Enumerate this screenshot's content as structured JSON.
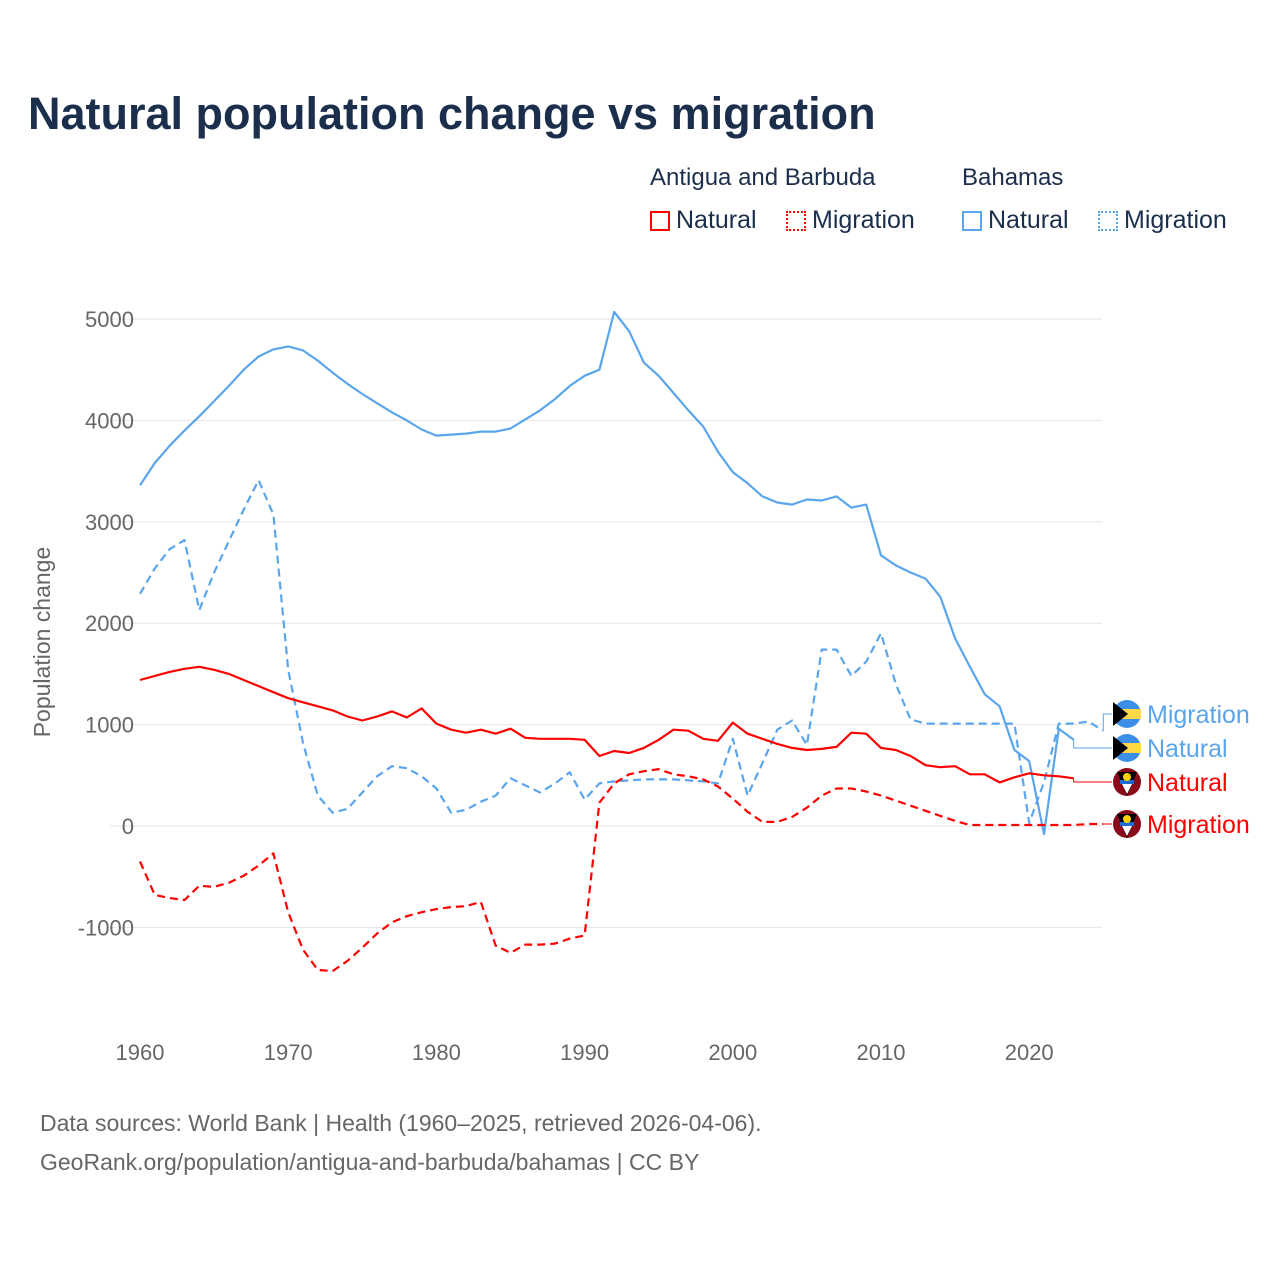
{
  "title": "Natural population change vs migration",
  "legend": {
    "groups": [
      {
        "name": "Antigua and Barbuda",
        "items": [
          "Natural",
          "Migration"
        ],
        "color": "#ff0000"
      },
      {
        "name": "Bahamas",
        "items": [
          "Natural",
          "Migration"
        ],
        "color": "#5aa5ec"
      }
    ]
  },
  "footer": {
    "line1": "Data sources: World Bank | Health (1960–2025, retrieved 2026-04-06).",
    "line2": "GeoRank.org/population/antigua-and-barbuda/bahamas | CC BY"
  },
  "chart_data": {
    "type": "line",
    "title": "Natural population change vs migration",
    "xlabel": "",
    "ylabel": "Population change",
    "xlim": [
      1960,
      2025
    ],
    "ylim": [
      -1800,
      5300
    ],
    "xticks": [
      1960,
      1970,
      1980,
      1990,
      2000,
      2010,
      2020
    ],
    "yticks": [
      -1000,
      0,
      1000,
      2000,
      3000,
      4000,
      5000
    ],
    "grid": true,
    "series": [
      {
        "name": "Bahamas Migration",
        "country": "Bahamas",
        "kind": "Migration",
        "color": "#5aa5ec",
        "dashed": true,
        "start": 1960,
        "values": [
          2290,
          2540,
          2730,
          2820,
          2130,
          2500,
          2810,
          3120,
          3410,
          3070,
          1540,
          820,
          300,
          130,
          170,
          330,
          490,
          590,
          570,
          490,
          370,
          130,
          160,
          240,
          300,
          470,
          400,
          330,
          420,
          530,
          260,
          420,
          440,
          450,
          460,
          460,
          460,
          450,
          440,
          420,
          860,
          300,
          620,
          950,
          1040,
          800,
          1740,
          1740,
          1480,
          1620,
          1900,
          1400,
          1050,
          1010,
          1010,
          1010,
          1010,
          1010,
          1010,
          1010,
          30,
          430,
          1010,
          1010,
          1030,
          940
        ]
      },
      {
        "name": "Bahamas Natural",
        "country": "Bahamas",
        "kind": "Natural",
        "color": "#5aa5ec",
        "dashed": false,
        "start": 1960,
        "values": [
          3360,
          3580,
          3750,
          3900,
          4040,
          4190,
          4340,
          4500,
          4630,
          4700,
          4730,
          4690,
          4590,
          4470,
          4360,
          4260,
          4170,
          4080,
          4000,
          3910,
          3850,
          3860,
          3870,
          3890,
          3890,
          3920,
          4010,
          4100,
          4210,
          4340,
          4440,
          4500,
          5070,
          4880,
          4570,
          4440,
          4270,
          4100,
          3940,
          3690,
          3490,
          3380,
          3250,
          3190,
          3170,
          3220,
          3210,
          3250,
          3140,
          3170,
          2670,
          2570,
          2500,
          2440,
          2260,
          1850,
          1570,
          1300,
          1180,
          750,
          640,
          -80,
          960,
          850
        ]
      },
      {
        "name": "Antigua and Barbuda Natural",
        "country": "Antigua and Barbuda",
        "kind": "Natural",
        "color": "#ff0000",
        "dashed": false,
        "start": 1960,
        "values": [
          1440,
          1480,
          1520,
          1550,
          1570,
          1540,
          1500,
          1440,
          1380,
          1320,
          1260,
          1220,
          1180,
          1140,
          1080,
          1040,
          1080,
          1130,
          1070,
          1160,
          1010,
          950,
          920,
          950,
          910,
          960,
          870,
          860,
          860,
          860,
          850,
          690,
          740,
          720,
          770,
          850,
          950,
          940,
          860,
          840,
          1020,
          910,
          860,
          810,
          770,
          750,
          760,
          780,
          920,
          910,
          770,
          750,
          690,
          600,
          580,
          590,
          510,
          510,
          430,
          480,
          520,
          500,
          490,
          470
        ]
      },
      {
        "name": "Antigua and Barbuda Migration",
        "country": "Antigua and Barbuda",
        "kind": "Migration",
        "color": "#ff0000",
        "dashed": true,
        "start": 1960,
        "values": [
          -350,
          -680,
          -710,
          -730,
          -590,
          -600,
          -560,
          -490,
          -390,
          -270,
          -850,
          -1220,
          -1420,
          -1430,
          -1330,
          -1200,
          -1060,
          -950,
          -890,
          -850,
          -820,
          -800,
          -790,
          -750,
          -1180,
          -1250,
          -1170,
          -1170,
          -1160,
          -1110,
          -1080,
          230,
          420,
          510,
          540,
          560,
          510,
          490,
          460,
          390,
          270,
          140,
          40,
          40,
          90,
          180,
          300,
          370,
          370,
          340,
          300,
          250,
          200,
          150,
          100,
          50,
          10,
          10,
          10,
          10,
          10,
          10,
          10,
          10,
          20,
          20
        ]
      }
    ],
    "end_labels": [
      "Migration",
      "Natural",
      "Natural",
      "Migration"
    ]
  }
}
